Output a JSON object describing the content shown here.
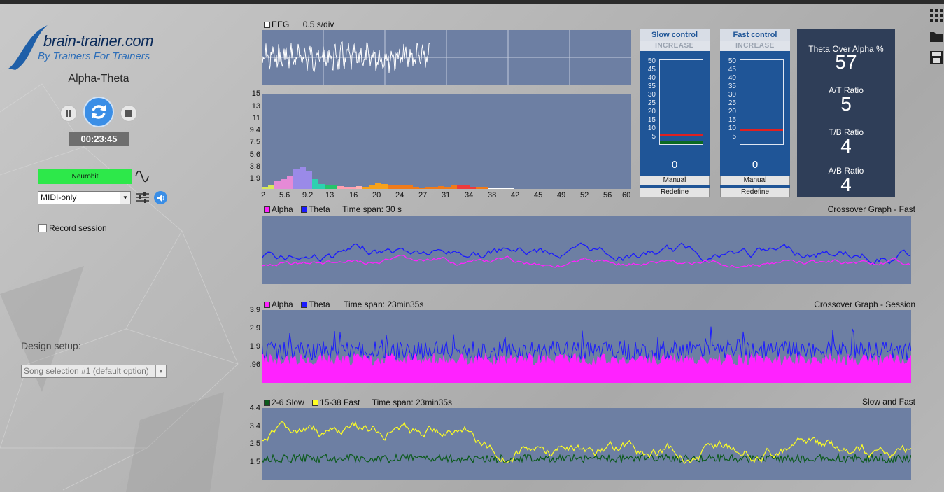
{
  "app": {
    "logo_main": "brain-trainer.com",
    "logo_sub": "By Trainers For Trainers",
    "protocol": "Alpha-Theta",
    "timer": "00:23:45"
  },
  "device": {
    "name": "Neurobit",
    "mode": "MIDI-only",
    "record_label": "Record session"
  },
  "design": {
    "label": "Design setup:",
    "song": "Song selection #1 (default option)"
  },
  "eeg": {
    "title": "EEG",
    "scale": "0.5 s/div"
  },
  "spectrum": {
    "y_ticks": [
      "15",
      "13",
      "11",
      "9.4",
      "7.5",
      "5.6",
      "3.8",
      "1.9"
    ],
    "x_ticks": [
      "2",
      "5.6",
      "9.2",
      "13",
      "16",
      "20",
      "24",
      "27",
      "31",
      "34",
      "38",
      "42",
      "45",
      "49",
      "52",
      "56",
      "60"
    ]
  },
  "fast_graph": {
    "legend_a": "Alpha",
    "legend_b": "Theta",
    "span": "Time span: 30 s",
    "title": "Crossover Graph - Fast"
  },
  "session_graph": {
    "legend_a": "Alpha",
    "legend_b": "Theta",
    "span": "Time span: 23min35s",
    "title": "Crossover Graph - Session",
    "y_ticks": [
      "3.9",
      "2.9",
      "1.9",
      ".96"
    ]
  },
  "sf_graph": {
    "legend_a": "2-6 Slow",
    "legend_b": "15-38 Fast",
    "span": "Time span: 23min35s",
    "title": "Slow and Fast",
    "y_ticks": [
      "4.4",
      "3.4",
      "2.5",
      "1.5"
    ]
  },
  "slow_control": {
    "title": "Slow control",
    "sub": "INCREASE",
    "value": "0",
    "manual": "Manual",
    "redefine": "Redefine",
    "scale": [
      "50",
      "45",
      "40",
      "35",
      "30",
      "25",
      "20",
      "15",
      "10",
      "5"
    ],
    "threshold": 6
  },
  "fast_control": {
    "title": "Fast control",
    "sub": "INCREASE",
    "value": "0",
    "manual": "Manual",
    "redefine": "Redefine",
    "scale": [
      "50",
      "45",
      "40",
      "35",
      "30",
      "25",
      "20",
      "15",
      "10",
      "5"
    ],
    "threshold": 9
  },
  "stats": {
    "l1": "Theta Over Alpha %",
    "v1": "57",
    "l2": "A/T Ratio",
    "v2": "5",
    "l3": "T/B Ratio",
    "v3": "4",
    "l4": "A/B Ratio",
    "v4": "4"
  },
  "colors": {
    "alpha": "#ff22ff",
    "theta": "#1a1aff",
    "slow": "#0b5a1a",
    "fast": "#ffff22",
    "panel": "#6d7fa3",
    "accent": "#3a8ee6"
  },
  "icons": [
    "grid-icon",
    "folder-icon",
    "save-icon",
    "pause-icon",
    "refresh-icon",
    "stop-icon",
    "sine-wave-icon",
    "sliders-icon",
    "speaker-icon"
  ]
}
